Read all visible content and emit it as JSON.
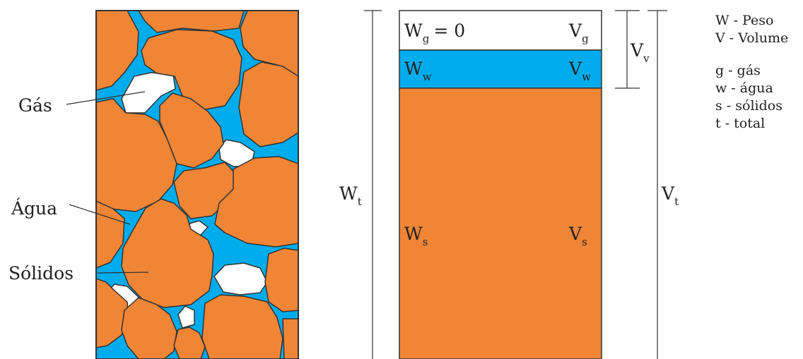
{
  "colors": {
    "solid": "#f08536",
    "water": "#00acec",
    "gas": "#ffffff",
    "outline": "#333333",
    "text": "#222222"
  },
  "soil_labels": {
    "gas": "Gás",
    "water": "Água",
    "solids": "Sólidos"
  },
  "phase_diagram": {
    "gas_row": {
      "weight_main": "W",
      "weight_sub": "g",
      "weight_suffix": "= 0",
      "volume_main": "V",
      "volume_sub": "g"
    },
    "water_row": {
      "weight_main": "W",
      "weight_sub": "w",
      "volume_main": "V",
      "volume_sub": "w"
    },
    "solid_row": {
      "weight_main": "W",
      "weight_sub": "s",
      "volume_main": "V",
      "volume_sub": "s"
    },
    "total_weight": {
      "main": "W",
      "sub": "t"
    },
    "total_volume": {
      "main": "V",
      "sub": "t"
    },
    "void_volume": {
      "main": "V",
      "sub": "v"
    }
  },
  "legend": {
    "items": [
      "W - Peso",
      "V - Volume",
      "g - gás",
      "w - água",
      "s - sólidos",
      "t - total"
    ]
  }
}
